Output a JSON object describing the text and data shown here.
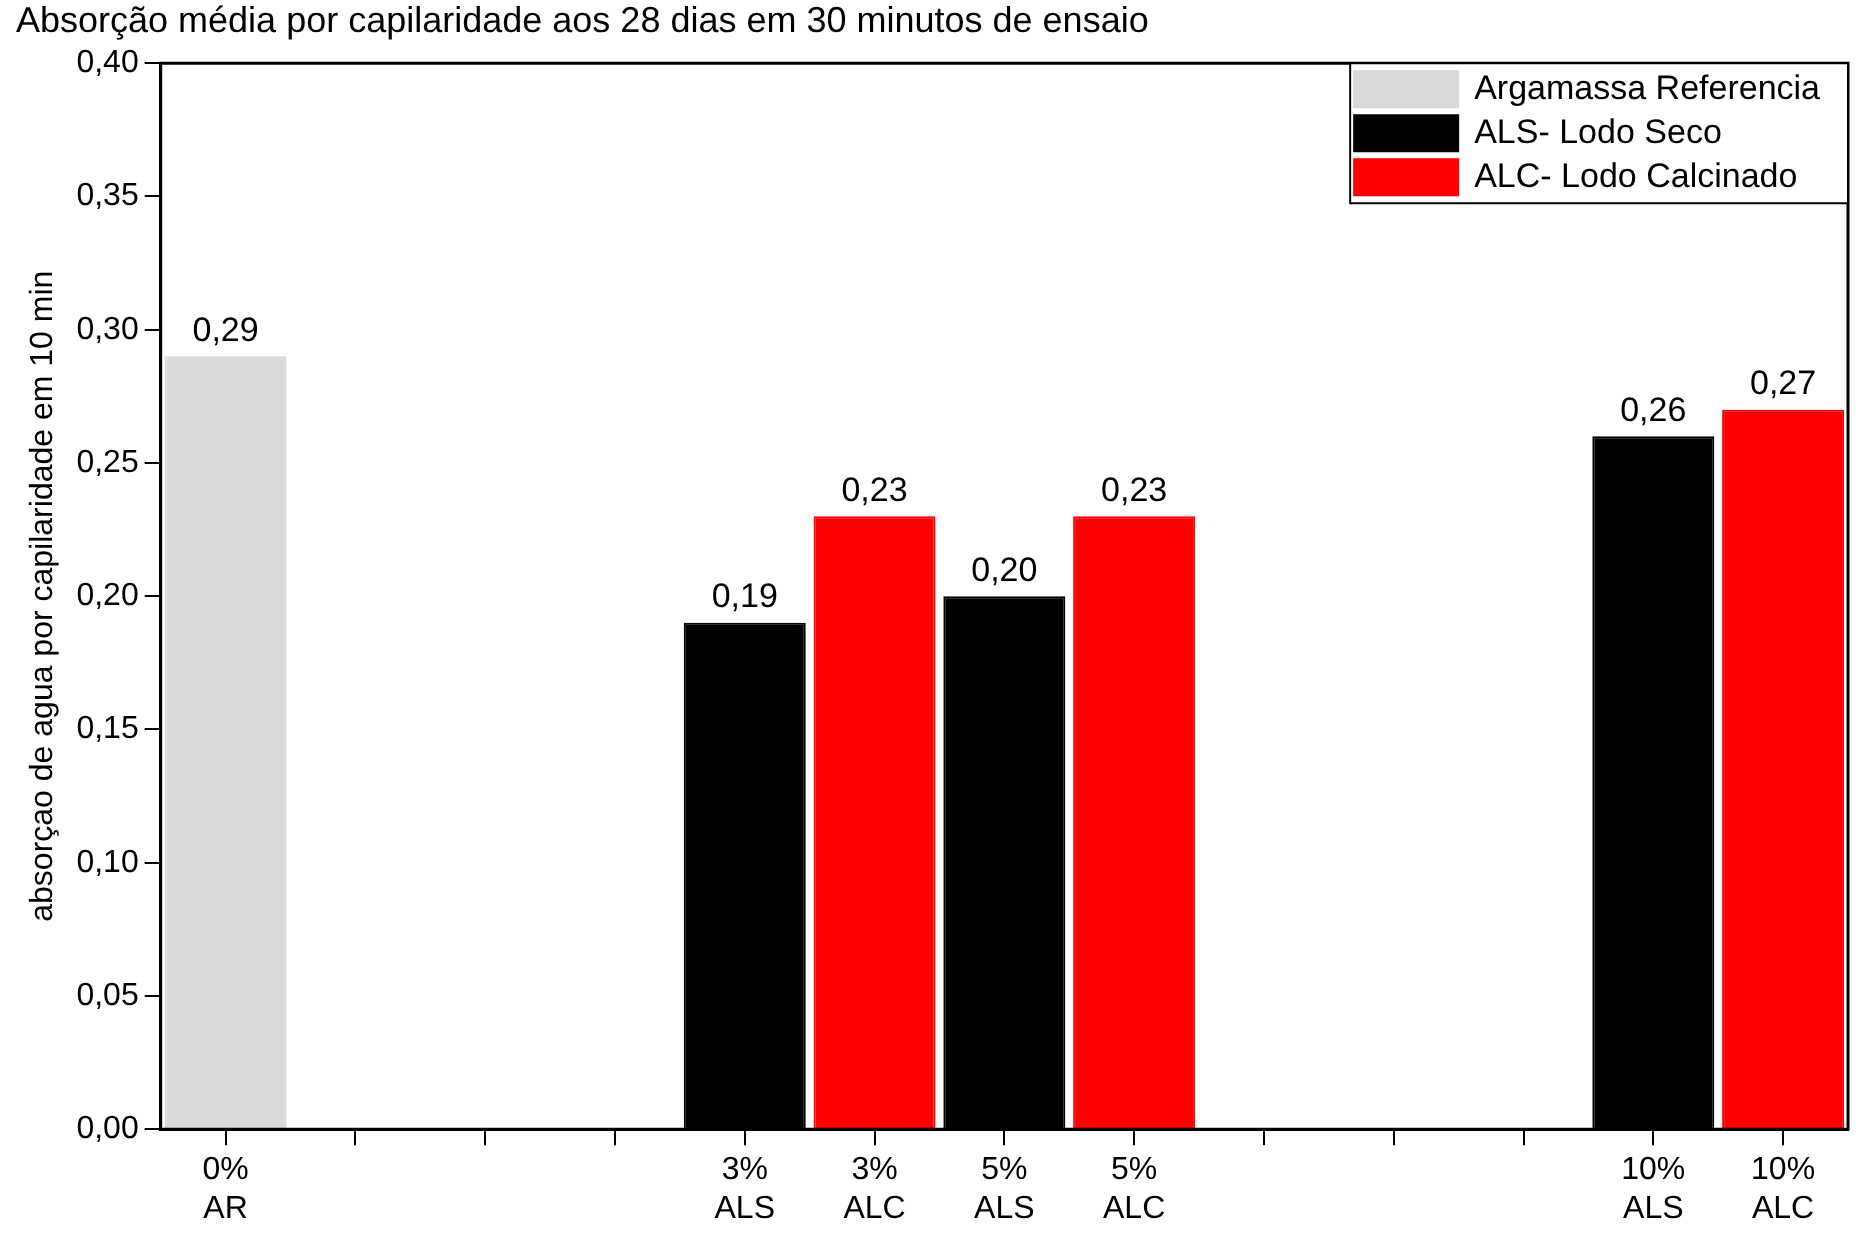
{
  "chart_data": {
    "type": "bar",
    "title": "Absorção média por capilaridade aos 28 dias em 30 minutos de ensaio",
    "ylabel": "absorçao de agua por capilaridade em 10 min",
    "categories": [
      "0%\nAR",
      null,
      null,
      null,
      "3%\nALS",
      "3%\nALC",
      "5%\nALS",
      "5%\nALC",
      null,
      null,
      null,
      "10%\nALS",
      "10%\nALC"
    ],
    "series": [
      {
        "name": "Argamassa Referencia",
        "color": "#d9d9d9",
        "values": [
          0.29,
          null,
          null,
          null,
          null,
          null,
          null,
          null,
          null,
          null,
          null,
          null,
          null
        ],
        "value_labels": [
          "0,29",
          null,
          null,
          null,
          null,
          null,
          null,
          null,
          null,
          null,
          null,
          null,
          null
        ]
      },
      {
        "name": "ALS- Lodo Seco",
        "color": "#000000",
        "values": [
          null,
          null,
          null,
          null,
          0.19,
          null,
          0.2,
          null,
          null,
          null,
          null,
          0.26,
          null
        ],
        "value_labels": [
          null,
          null,
          null,
          null,
          "0,19",
          null,
          "0,20",
          null,
          null,
          null,
          null,
          "0,26",
          null
        ]
      },
      {
        "name": "ALC- Lodo Calcinado",
        "color": "#ff0000",
        "values": [
          null,
          null,
          null,
          null,
          null,
          0.23,
          null,
          0.23,
          null,
          null,
          null,
          null,
          0.27
        ],
        "value_labels": [
          null,
          null,
          null,
          null,
          null,
          "0,23",
          null,
          "0,23",
          null,
          null,
          null,
          null,
          "0,27"
        ]
      }
    ],
    "ylim": [
      0,
      0.4
    ],
    "yticks": [
      {
        "value": 0,
        "label": "0,00"
      },
      {
        "value": 0.05,
        "label": "0,05"
      },
      {
        "value": 0.1,
        "label": "0,10"
      },
      {
        "value": 0.15,
        "label": "0,15"
      },
      {
        "value": 0.2,
        "label": "0,20"
      },
      {
        "value": 0.25,
        "label": "0,25"
      },
      {
        "value": 0.3,
        "label": "0,30"
      },
      {
        "value": 0.35,
        "label": "0,35"
      },
      {
        "value": 0.4,
        "label": "0,40"
      }
    ],
    "grid": false,
    "legend": "top right"
  }
}
